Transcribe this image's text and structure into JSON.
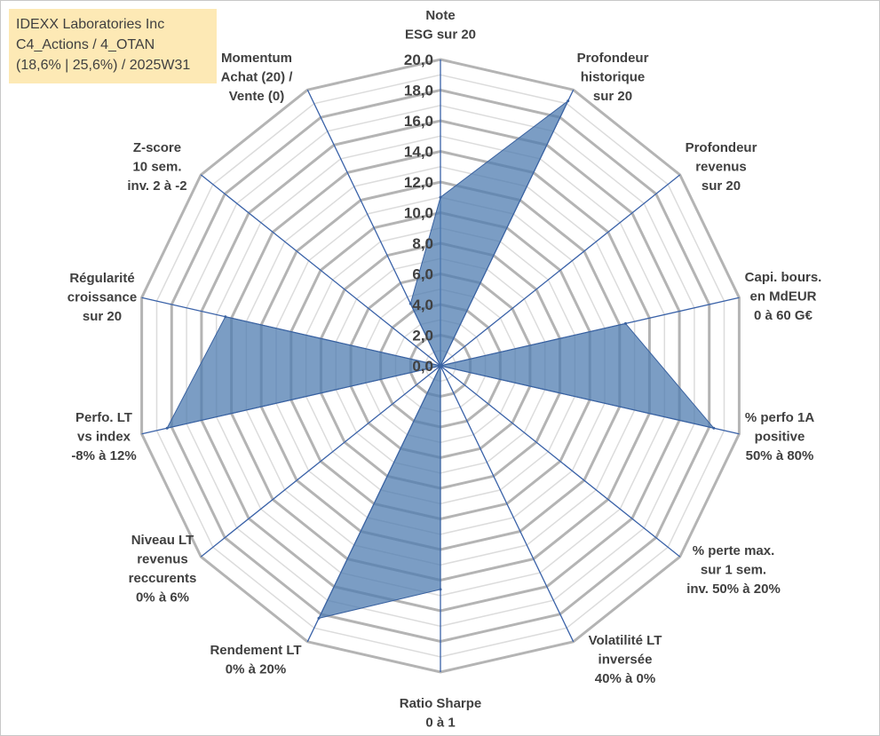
{
  "info_box": {
    "lines": [
      "IDEXX Laboratories Inc",
      "C4_Actions / 4_OTAN",
      "(18,6% | 25,6%) / 2025W31"
    ]
  },
  "colors": {
    "fill": "#4f7cb0",
    "stroke": "#3a62a0",
    "spoke": "#3a62a8",
    "grid_major": "#b4b4b4",
    "grid_minor": "#dcdcdc",
    "info_bg": "#fde9b5"
  },
  "chart_data": {
    "type": "radar",
    "rmin": 0,
    "rmax": 20,
    "major_step": 2,
    "minor_step": 1,
    "tick_labels": [
      "0,0",
      "2,0",
      "4,0",
      "6,0",
      "8,0",
      "10,0",
      "12,0",
      "14,0",
      "16,0",
      "18,0",
      "20,0"
    ],
    "axes": [
      {
        "label": [
          "Note",
          "ESG sur 20"
        ]
      },
      {
        "label": [
          "Profondeur",
          "historique",
          "sur 20"
        ]
      },
      {
        "label": [
          "Profondeur",
          "revenus",
          "sur 20"
        ]
      },
      {
        "label": [
          "Capi. bours.",
          "en MdEUR",
          "0 à 60 G€"
        ]
      },
      {
        "label": [
          "% perfo 1A",
          "positive",
          "50% à 80%"
        ]
      },
      {
        "label": [
          "% perte max.",
          "sur 1 sem.",
          "inv. 50% à 20%"
        ]
      },
      {
        "label": [
          "Volatilité LT",
          "inversée",
          "40% à 0%"
        ]
      },
      {
        "label": [
          "Ratio Sharpe",
          "0 à 1"
        ]
      },
      {
        "label": [
          "Rendement LT",
          "0% à 20%"
        ]
      },
      {
        "label": [
          "Niveau LT",
          "revenus",
          "reccurents",
          "0% à 6%"
        ]
      },
      {
        "label": [
          "Perfo. LT",
          "vs index",
          "-8% à 12%"
        ]
      },
      {
        "label": [
          "Régularité",
          "croissance",
          "sur 20"
        ]
      },
      {
        "label": [
          "Z-score",
          "10 sem.",
          "inv. 2 à -2"
        ]
      },
      {
        "label": [
          "Momentum",
          "Achat (20) /",
          "Vente (0)"
        ]
      }
    ],
    "series": [
      {
        "values": [
          11.0,
          19.2,
          0.0,
          12.4,
          18.3,
          0.0,
          0.0,
          14.6,
          18.3,
          0.0,
          18.3,
          14.4,
          0.0,
          4.5
        ]
      }
    ]
  }
}
